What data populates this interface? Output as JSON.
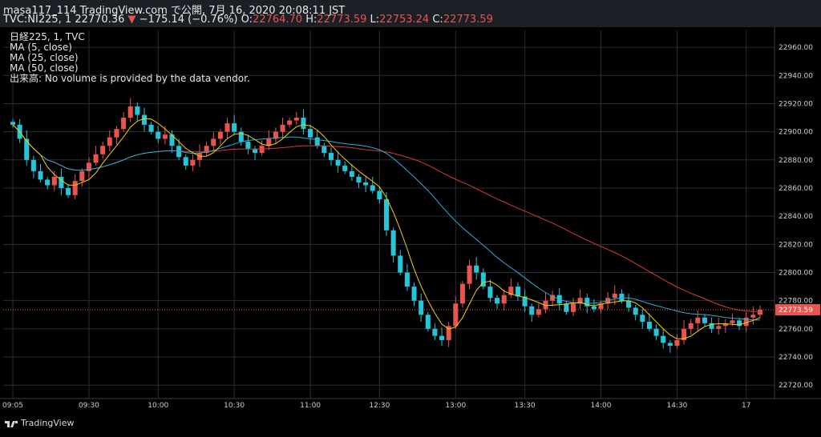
{
  "header": {
    "publisher_line": "masa117_114 TradingView.com で公開, 7月 16, 2020 20:08:11 JST",
    "symbol": "TVC:NI225, 1",
    "last": "22770.36",
    "change_arrow": "▼",
    "change": "−175.14 (−0.76%)",
    "o_label": "O:",
    "o": "22764.70",
    "h_label": "H:",
    "h": "22773.59",
    "l_label": "L:",
    "l": "22753.24",
    "c_label": "C:",
    "c": "22773.59"
  },
  "legend": {
    "line1": "日経225, 1, TVC",
    "line2": "MA (5, close)",
    "line3": "MA (25, close)",
    "line4": "MA (50, close)",
    "line5": "出来高: No volume is provided by the data vendor."
  },
  "brand": "TradingView",
  "colors": {
    "up": "#e8554e",
    "down": "#26c6da",
    "ma5": "#f5d000",
    "ma25": "#2bb0d6",
    "ma50": "#d93a2f",
    "price_line": "#e8554e",
    "grid": "#2a2d35",
    "bg": "#000000"
  },
  "chart_data": {
    "type": "candlestick",
    "x_ticks": [
      "09:05",
      "09:30",
      "10:00",
      "10:30",
      "11:00",
      "12:30",
      "13:00",
      "13:30",
      "14:00",
      "14:30",
      "17"
    ],
    "y_ticks": [
      "22720.00",
      "22740.00",
      "22760.00",
      "22780.00",
      "22800.00",
      "22820.00",
      "22840.00",
      "22860.00",
      "22880.00",
      "22900.00",
      "22920.00",
      "22940.00",
      "22960.00"
    ],
    "ylim": [
      22715,
      22972
    ],
    "last_price_label": "22773.59",
    "series_close": [
      22905,
      22895,
      22880,
      22872,
      22866,
      22862,
      22868,
      22860,
      22855,
      22865,
      22872,
      22878,
      22884,
      22890,
      22896,
      22902,
      22910,
      22918,
      22912,
      22905,
      22900,
      22895,
      22898,
      22890,
      22882,
      22876,
      22880,
      22885,
      22890,
      22895,
      22900,
      22906,
      22900,
      22893,
      22888,
      22885,
      22890,
      22895,
      22900,
      22905,
      22908,
      22910,
      22902,
      22896,
      22890,
      22885,
      22880,
      22876,
      22872,
      22868,
      22864,
      22862,
      22858,
      22852,
      22830,
      22812,
      22800,
      22790,
      22780,
      22770,
      22760,
      22755,
      22752,
      22762,
      22778,
      22792,
      22805,
      22800,
      22790,
      22782,
      22778,
      22784,
      22790,
      22783,
      22776,
      22770,
      22774,
      22780,
      22784,
      22778,
      22772,
      22778,
      22782,
      22776,
      22774,
      22778,
      22782,
      22785,
      22780,
      22775,
      22770,
      22765,
      22760,
      22755,
      22750,
      22748,
      22752,
      22760,
      22764,
      22768,
      22764,
      22760,
      22762,
      22764,
      22766,
      22762,
      22768,
      22770,
      22773.59
    ],
    "ma5_note": "short moving average",
    "ma25_note": "medium moving average",
    "ma50_note": "long moving average"
  }
}
